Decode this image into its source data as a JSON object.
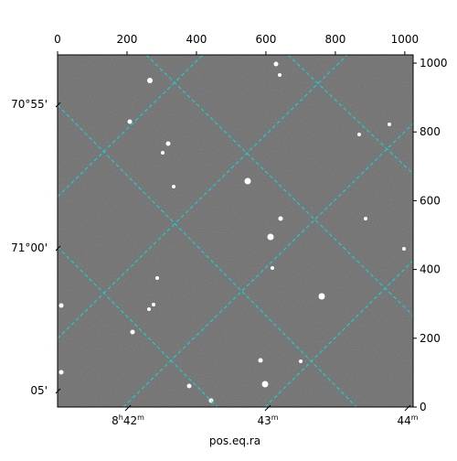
{
  "chart_data": {
    "type": "image",
    "xlim": [
      0,
      1024
    ],
    "ylim": [
      0,
      1024
    ],
    "xticks": [
      0,
      200,
      400,
      600,
      800,
      1000
    ],
    "yticks": [
      0,
      200,
      400,
      600,
      800,
      1000
    ],
    "x_label": "pos.eq.ra",
    "ra_labels": [
      {
        "parts": [
          "8",
          "h",
          "42",
          "m"
        ]
      },
      {
        "parts": [
          "43",
          "m"
        ]
      },
      {
        "parts": [
          "44",
          "m"
        ]
      }
    ],
    "dec_labels": [
      "70°55'",
      "71°00'",
      "05'"
    ],
    "grid_color": "#00e0e0"
  }
}
